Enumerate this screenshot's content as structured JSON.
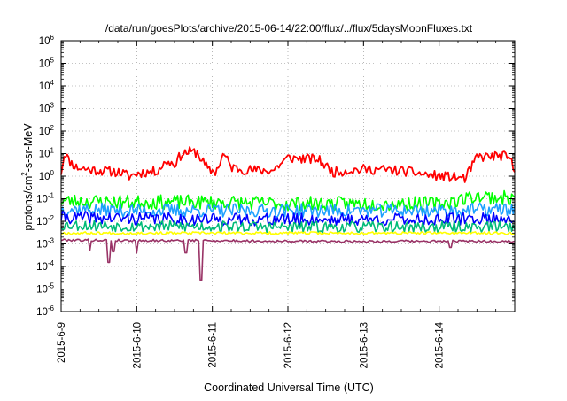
{
  "chart_data": {
    "type": "line",
    "title": "/data/run/goesPlots/archive/2015-06-14/22:00/flux/../flux/5daysMoonFluxes.txt",
    "xlabel": "Coordinated Universal Time (UTC)",
    "ylabel_main": "protons/cm",
    "ylabel_sup": "2",
    "ylabel_tail": "-s-sr-MeV",
    "x_tick_labels": [
      "2015-6-9",
      "2015-6-10",
      "2015-6-11",
      "2015-6-12",
      "2015-6-13",
      "2015-6-14"
    ],
    "xlim": [
      0,
      6.0
    ],
    "y_scale": "log",
    "ylim_exp": [
      -6,
      6
    ],
    "y_tick_exponents": [
      -6,
      -5,
      -4,
      -3,
      -2,
      -1,
      0,
      1,
      2,
      3,
      4,
      5,
      6
    ],
    "y_tick_base": "10",
    "grid": true,
    "series": [
      {
        "color": "#ff0000",
        "base": 2.0,
        "noise": 0.22,
        "seed": 11,
        "x": [
          0.0,
          0.05,
          0.1,
          0.2,
          0.35,
          0.5,
          0.7,
          0.8,
          0.9,
          1.0,
          1.1,
          1.25,
          1.4,
          1.5,
          1.6,
          1.7,
          1.8,
          1.95,
          2.05,
          2.15,
          2.25,
          2.4,
          2.6,
          2.8,
          3.0,
          3.2,
          3.4,
          3.6,
          3.8,
          4.0,
          4.2,
          4.4,
          4.6,
          4.8,
          5.0,
          5.2,
          5.35,
          5.5,
          5.7,
          5.85,
          5.95,
          6.0
        ],
        "y": [
          1.5,
          13,
          5,
          2.5,
          2.0,
          1.8,
          1.6,
          1.4,
          1.0,
          1.3,
          1.5,
          1.6,
          4.5,
          3.5,
          10,
          12,
          11,
          1.8,
          1.6,
          10,
          2.5,
          2.0,
          1.8,
          1.8,
          6.5,
          6.0,
          5.5,
          1.5,
          1.8,
          2.0,
          2.0,
          1.8,
          1.6,
          1.2,
          1.0,
          0.9,
          0.8,
          7,
          7.5,
          8,
          5,
          1.4
        ]
      },
      {
        "color": "#00ff00",
        "base": 0.08,
        "noise": 0.32,
        "seed": 23,
        "x": [
          0,
          1,
          2,
          3,
          4,
          5,
          5.5,
          6.0
        ],
        "y": [
          0.08,
          0.07,
          0.07,
          0.06,
          0.06,
          0.06,
          0.13,
          0.1
        ]
      },
      {
        "color": "#1ea0ff",
        "base": 0.035,
        "noise": 0.3,
        "seed": 37,
        "x": [
          0,
          1,
          2,
          3,
          4,
          5,
          6.0
        ],
        "y": [
          0.035,
          0.03,
          0.03,
          0.03,
          0.03,
          0.03,
          0.035
        ]
      },
      {
        "color": "#0000ff",
        "base": 0.015,
        "noise": 0.28,
        "seed": 41,
        "x": [
          0,
          1,
          2,
          3,
          4,
          5,
          6.0
        ],
        "y": [
          0.015,
          0.013,
          0.012,
          0.012,
          0.012,
          0.012,
          0.014
        ]
      },
      {
        "color": "#00bb77",
        "base": 0.007,
        "noise": 0.25,
        "seed": 53,
        "x": [
          0,
          1,
          2,
          3,
          4,
          5,
          6.0
        ],
        "y": [
          0.007,
          0.006,
          0.006,
          0.0055,
          0.0055,
          0.0055,
          0.006
        ]
      },
      {
        "color": "#ffff00",
        "base": 0.003,
        "noise": 0.06,
        "seed": 67,
        "x": [
          0,
          1,
          2,
          3,
          4,
          5,
          6.0
        ],
        "y": [
          0.003,
          0.003,
          0.003,
          0.003,
          0.003,
          0.003,
          0.003
        ]
      },
      {
        "color": "#993366",
        "base": 0.0015,
        "noise": 0.05,
        "seed": 79,
        "x": [
          0,
          1,
          2,
          3,
          4,
          5,
          6.0
        ],
        "y": [
          0.0015,
          0.0014,
          0.0014,
          0.0013,
          0.0013,
          0.0013,
          0.0013
        ],
        "dips": [
          [
            0.38,
            0.0005
          ],
          [
            0.63,
            0.00015
          ],
          [
            0.69,
            0.00045
          ],
          [
            1.0,
            0.0004
          ],
          [
            1.65,
            0.0004
          ],
          [
            1.85,
            2.5e-05
          ],
          [
            5.15,
            0.0007
          ]
        ]
      }
    ]
  }
}
